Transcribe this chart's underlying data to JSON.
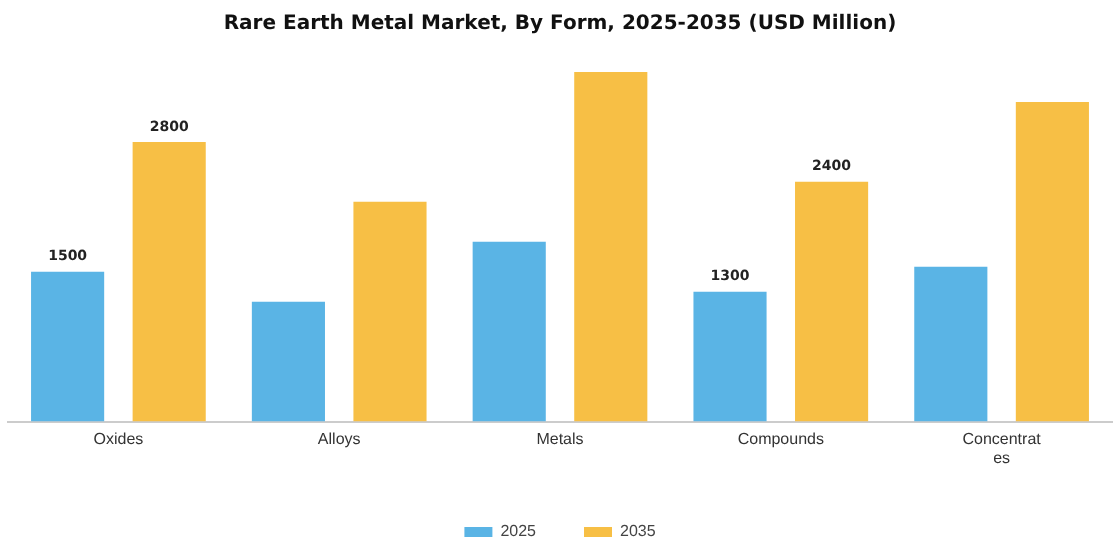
{
  "chart_data": {
    "type": "bar",
    "title": "Rare Earth Metal Market, By Form, 2025-2035 (USD Million)",
    "categories": [
      "Oxides",
      "Alloys",
      "Metals",
      "Compounds",
      "Concentrates"
    ],
    "series": [
      {
        "name": "2025",
        "color": "#5ab4e5",
        "values": [
          1500,
          1200,
          1800,
          1300,
          1550
        ],
        "value_labels": [
          "1500",
          null,
          null,
          "1300",
          null
        ]
      },
      {
        "name": "2035",
        "color": "#f7bf45",
        "values": [
          2800,
          2200,
          3500,
          2400,
          3200
        ],
        "value_labels": [
          "2800",
          null,
          null,
          "2400",
          null
        ]
      }
    ],
    "legend": "bottom",
    "grid": false,
    "tick_labels": "x"
  }
}
